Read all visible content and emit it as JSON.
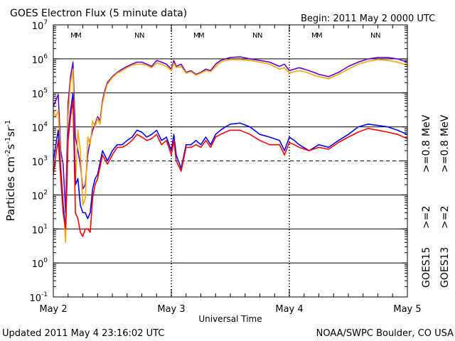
{
  "chart_data": {
    "type": "line",
    "title": "GOES Electron Flux (5 minute data)",
    "begin_label": "Begin: 2011 May 2 0000 UTC",
    "xlabel": "Universal Time",
    "ylabel_parts": [
      "Particles cm",
      "-2",
      "s",
      "-1",
      "sr",
      "-1"
    ],
    "updated": "Updated 2011 May  4 23:16:02 UTC",
    "source": "NOAA/SWPC Boulder, CO USA",
    "x_unit": "hours since 2011 May 2 0000 UTC",
    "xlim": [
      0,
      72
    ],
    "x_ticks": [
      {
        "x": 0,
        "label": "May 2"
      },
      {
        "x": 24,
        "label": "May 3"
      },
      {
        "x": 48,
        "label": "May 4"
      },
      {
        "x": 72,
        "label": "May 5"
      }
    ],
    "y_scale": "log",
    "ylim_exp": [
      -1,
      7
    ],
    "y_ticks": [
      {
        "exp": 7,
        "label": "10",
        "sup": "7"
      },
      {
        "exp": 6,
        "label": "10",
        "sup": "6"
      },
      {
        "exp": 5,
        "label": "10",
        "sup": "5"
      },
      {
        "exp": 4,
        "label": "10",
        "sup": "4"
      },
      {
        "exp": 3,
        "label": "10",
        "sup": "3"
      },
      {
        "exp": 2,
        "label": "10",
        "sup": "2"
      },
      {
        "exp": 1,
        "label": "10",
        "sup": "1"
      },
      {
        "exp": 0,
        "label": "10",
        "sup": "0"
      },
      {
        "exp": -1,
        "label": "10",
        "sup": "-1"
      }
    ],
    "grid_solid_exp": [
      6,
      5,
      4,
      2,
      1,
      0
    ],
    "grid_dashed_exp": [
      3
    ],
    "markers": [
      {
        "x": 4.5,
        "text": "M",
        "colors": [
          "#0000cc",
          "#cc0000"
        ]
      },
      {
        "x": 17.5,
        "text": "N",
        "colors": [
          "#cc0000",
          "#0000cc"
        ]
      },
      {
        "x": 29.5,
        "text": "M",
        "colors": [
          "#0000cc",
          "#cc0000"
        ]
      },
      {
        "x": 41.5,
        "text": "N",
        "colors": [
          "#cc0000",
          "#0000cc"
        ]
      },
      {
        "x": 53.5,
        "text": "M",
        "colors": [
          "#0000cc",
          "#cc0000"
        ]
      },
      {
        "x": 65.5,
        "text": "N",
        "colors": [
          "#cc0000",
          "#0000cc"
        ]
      }
    ],
    "legend": [
      {
        "sat": "GOES15",
        "energy": ">=2",
        "unit": "",
        "color": "#0000ff"
      },
      {
        "sat": "GOES13",
        "energy": ">=2",
        "unit": "",
        "color": "#ff0000"
      },
      {
        "sat": "",
        "energy": ">=0.8",
        "unit": "MeV",
        "color": "#6600cc"
      },
      {
        "sat": "",
        "energy": ">=0.8",
        "unit": "MeV",
        "color": "#ffa500"
      }
    ],
    "series": [
      {
        "name": "GOES15 >=0.8 MeV",
        "color": "#6600cc",
        "x": [
          0,
          0.5,
          1,
          1.5,
          2,
          2.5,
          3,
          3.5,
          4,
          4.5,
          5,
          5.5,
          6,
          6.5,
          7,
          7.5,
          8,
          8.5,
          9,
          9.5,
          10,
          10.5,
          11,
          12,
          13,
          14,
          15,
          16,
          17,
          18,
          19,
          20,
          21,
          22,
          23,
          24,
          24.5,
          25,
          26,
          27,
          28,
          29,
          30,
          31,
          32,
          33,
          34,
          35,
          36,
          38,
          40,
          42,
          44,
          46,
          47,
          48,
          49,
          50,
          51,
          52,
          53,
          54,
          56,
          58,
          60,
          62,
          64,
          66,
          68,
          70,
          72
        ],
        "y": [
          40000,
          60000,
          90000,
          2000,
          800,
          30,
          50000,
          300000,
          800000,
          5000,
          2000,
          800,
          150,
          200,
          1500,
          4000,
          8000,
          12000,
          20000,
          15000,
          60000,
          120000,
          200000,
          300000,
          400000,
          500000,
          600000,
          700000,
          800000,
          800000,
          700000,
          600000,
          900000,
          800000,
          700000,
          500000,
          900000,
          600000,
          700000,
          400000,
          450000,
          350000,
          400000,
          500000,
          450000,
          700000,
          900000,
          1000000,
          1100000,
          1150000,
          1000000,
          900000,
          800000,
          600000,
          700000,
          450000,
          500000,
          550000,
          500000,
          450000,
          400000,
          350000,
          300000,
          400000,
          600000,
          800000,
          1000000,
          1100000,
          1100000,
          1000000,
          800000
        ]
      },
      {
        "name": "GOES13 >=0.8 MeV",
        "color": "#ffa500",
        "x": [
          0,
          0.5,
          1,
          1.5,
          2,
          2.5,
          3,
          3.5,
          4,
          4.5,
          5,
          5.5,
          6,
          6.5,
          7,
          7.5,
          8,
          8.5,
          9,
          9.5,
          10,
          10.5,
          11,
          12,
          13,
          14,
          15,
          16,
          17,
          18,
          19,
          20,
          21,
          22,
          23,
          24,
          24.5,
          25,
          26,
          27,
          28,
          29,
          30,
          31,
          32,
          33,
          34,
          35,
          36,
          38,
          40,
          42,
          44,
          46,
          47,
          48,
          49,
          50,
          51,
          52,
          53,
          54,
          56,
          58,
          60,
          62,
          64,
          66,
          68,
          70,
          72
        ],
        "y": [
          30000,
          20000,
          30000,
          1000,
          60,
          4,
          20000,
          200000,
          500000,
          200,
          8000,
          2000,
          50,
          80,
          5000,
          3000,
          15000,
          10000,
          18000,
          12000,
          50000,
          100000,
          180000,
          280000,
          380000,
          450000,
          550000,
          650000,
          700000,
          700000,
          650000,
          550000,
          750000,
          700000,
          600000,
          450000,
          750000,
          550000,
          600000,
          380000,
          420000,
          330000,
          380000,
          450000,
          420000,
          600000,
          800000,
          900000,
          950000,
          950000,
          900000,
          800000,
          700000,
          500000,
          550000,
          380000,
          420000,
          450000,
          420000,
          380000,
          330000,
          300000,
          260000,
          350000,
          500000,
          700000,
          850000,
          950000,
          900000,
          800000,
          650000
        ]
      },
      {
        "name": "GOES15 >=2 MeV",
        "color": "#0000ff",
        "x": [
          0,
          0.5,
          1,
          1.5,
          2,
          2.5,
          3,
          3.5,
          4,
          4.5,
          5,
          5.5,
          6,
          6.5,
          7,
          7.5,
          8,
          8.5,
          9,
          10,
          11,
          12,
          13,
          14,
          15,
          16,
          17,
          18,
          19,
          20,
          21,
          22,
          23,
          24,
          24.5,
          25,
          26,
          27,
          28,
          29,
          30,
          31,
          32,
          33,
          34,
          35,
          36,
          38,
          40,
          42,
          44,
          46,
          47,
          48,
          49,
          50,
          52,
          54,
          56,
          58,
          60,
          62,
          64,
          66,
          68,
          70,
          72
        ],
        "y": [
          1000,
          3000,
          8000,
          500,
          50,
          10,
          6000,
          30000,
          100000,
          200,
          300,
          50,
          30,
          30,
          20,
          30,
          150,
          300,
          400,
          2000,
          1000,
          2000,
          3000,
          3000,
          4000,
          5000,
          8000,
          7000,
          5000,
          6000,
          8000,
          4000,
          5000,
          2000,
          6000,
          1500,
          600,
          3000,
          3000,
          4000,
          3000,
          5000,
          3000,
          6000,
          8000,
          10000,
          12000,
          13000,
          10000,
          6000,
          5000,
          4000,
          2000,
          5000,
          4000,
          3000,
          2000,
          3000,
          2500,
          4000,
          6000,
          10000,
          12000,
          11000,
          10000,
          8000,
          6000
        ]
      },
      {
        "name": "GOES13 >=2 MeV",
        "color": "#ff0000",
        "x": [
          0,
          0.5,
          1,
          1.5,
          2,
          2.5,
          3,
          3.5,
          4,
          4.5,
          5,
          5.5,
          6,
          6.5,
          7,
          7.5,
          8,
          8.5,
          9,
          10,
          11,
          12,
          13,
          14,
          15,
          16,
          17,
          18,
          19,
          20,
          21,
          22,
          23,
          24,
          24.5,
          25,
          26,
          27,
          28,
          29,
          30,
          31,
          32,
          33,
          34,
          35,
          36,
          38,
          40,
          42,
          44,
          46,
          47,
          48,
          49,
          50,
          52,
          54,
          56,
          58,
          60,
          62,
          64,
          66,
          68,
          70,
          72
        ],
        "y": [
          400,
          1500,
          4000,
          300,
          30,
          10,
          4000,
          20000,
          60000,
          30,
          20,
          8,
          6,
          10,
          10,
          8,
          80,
          200,
          300,
          1500,
          800,
          1500,
          2500,
          2500,
          3000,
          4000,
          6000,
          5000,
          4000,
          4500,
          6000,
          3000,
          4000,
          1500,
          4000,
          1000,
          500,
          2500,
          2500,
          3000,
          2500,
          4000,
          2500,
          5000,
          6000,
          7000,
          8000,
          8000,
          6000,
          4000,
          3000,
          3000,
          1500,
          3500,
          3000,
          2500,
          2000,
          2500,
          2200,
          3500,
          5000,
          7000,
          9000,
          8000,
          7000,
          6000,
          4500
        ]
      }
    ]
  }
}
